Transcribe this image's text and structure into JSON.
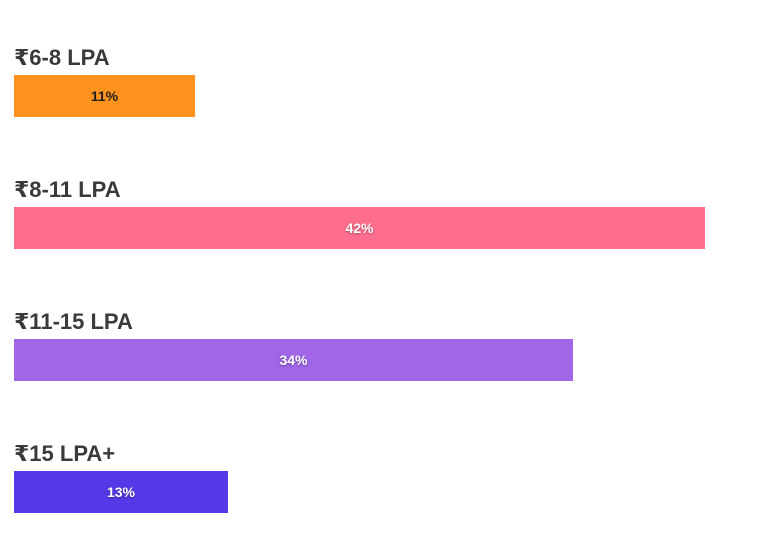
{
  "chart_data": {
    "type": "bar",
    "orientation": "horizontal",
    "categories": [
      "₹6-8 LPA",
      "₹8-11 LPA",
      "₹11-15 LPA",
      "₹15 LPA+"
    ],
    "values": [
      11,
      42,
      34,
      13
    ],
    "value_labels": [
      "11%",
      "42%",
      "34%",
      "13%"
    ],
    "colors": [
      "#ff931e",
      "#ff6f8d",
      "#a066e6",
      "#5439e6"
    ],
    "xlim": [
      0,
      45
    ],
    "grid": false
  }
}
